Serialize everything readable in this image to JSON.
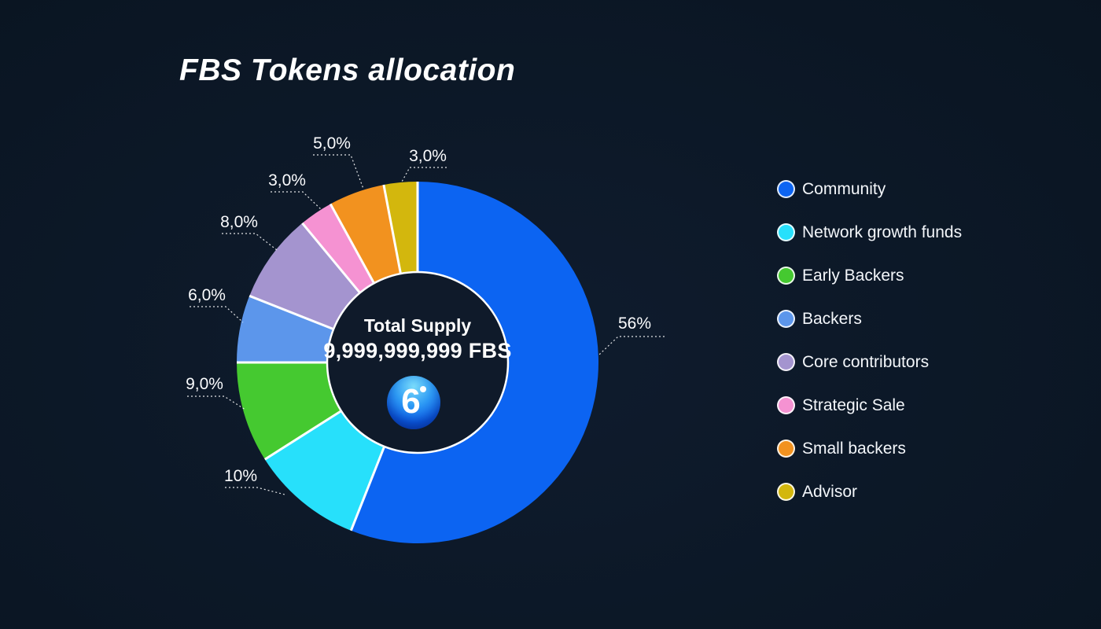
{
  "chart_data": {
    "type": "pie",
    "subtype": "donut",
    "title": "FBS Tokens allocation",
    "center": {
      "label": "Total Supply",
      "value": "9,999,999,999 FBS"
    },
    "legend_position": "right",
    "grid": false,
    "start_angle_deg": 0,
    "direction": "clockwise",
    "categories": [
      "Community",
      "Network growth funds",
      "Early Backers",
      "Backers",
      "Core contributors",
      "Strategic Sale",
      "Small backers",
      "Advisor"
    ],
    "values": [
      56,
      10,
      9,
      6,
      8,
      3,
      5,
      3
    ],
    "value_labels": [
      "56%",
      "10%",
      "9,0%",
      "6,0%",
      "8,0%",
      "3,0%",
      "5,0%",
      "3,0%"
    ],
    "colors": [
      "#0C64F2",
      "#27E0FB",
      "#45C930",
      "#5C96EB",
      "#A494CF",
      "#F592D2",
      "#F2921F",
      "#D3B70D"
    ],
    "separator_color": "#FFFFFF",
    "hole_color": "#0F1A2A",
    "background_color": "#0A1522",
    "label_color": "#FBFCFE"
  },
  "logo": {
    "name": "FBS",
    "glyph": "6"
  }
}
